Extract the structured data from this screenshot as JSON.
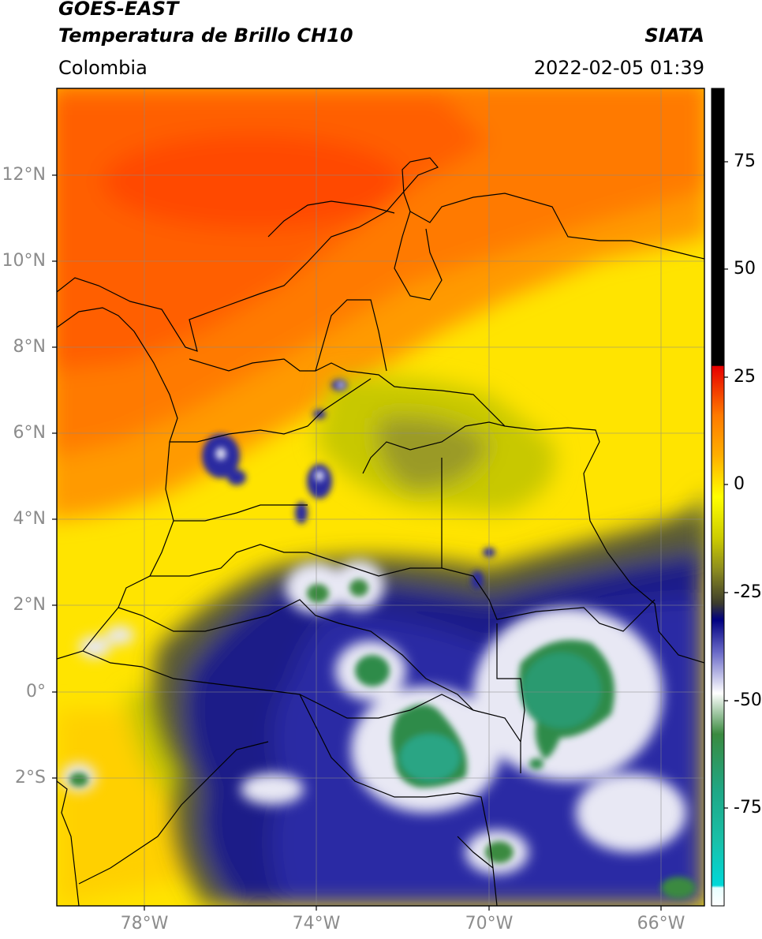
{
  "header": {
    "satellite": "GOES-EAST",
    "product": "Temperatura de Brillo CH10",
    "region": "Colombia",
    "agency": "SIATA",
    "datetime": "2022-02-05 01:39"
  },
  "map": {
    "lat_labels": [
      "12°N",
      "10°N",
      "8°N",
      "6°N",
      "4°N",
      "2°N",
      "0°",
      "2°S"
    ],
    "lon_labels": [
      "78°W",
      "74°W",
      "70°W",
      "66°W"
    ],
    "extent": {
      "lon_min": -80,
      "lon_max": -65,
      "lat_min": -4.4,
      "lat_max": 14
    }
  },
  "colorbar": {
    "ticks": [
      "75",
      "50",
      "25",
      "0",
      "-25",
      "-50",
      "-75"
    ],
    "range": [
      -95,
      90
    ],
    "colors": [
      "#e6ffff",
      "#00d8d8",
      "#1fa886",
      "#2e7d32",
      "#ffffff",
      "#3a3ab0",
      "#000066",
      "#4a4a20",
      "#cccc00",
      "#ffff00",
      "#ff8c00",
      "#e60000",
      "#000000"
    ]
  }
}
